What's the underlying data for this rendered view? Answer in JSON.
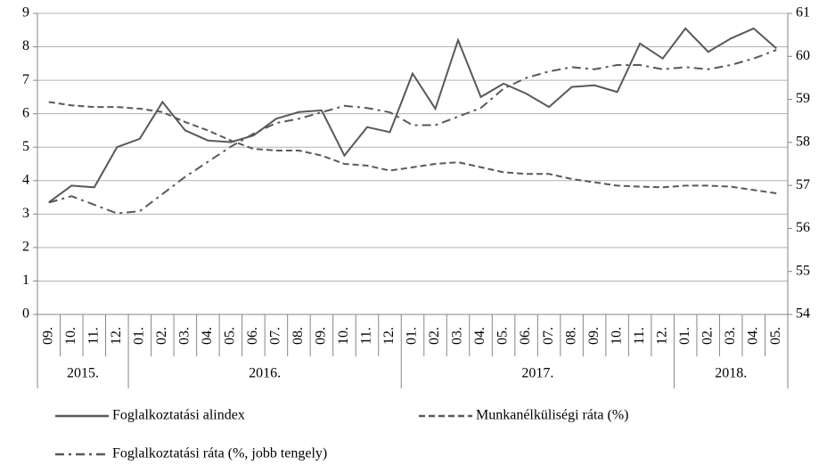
{
  "chart_data": {
    "type": "line",
    "categories": [
      "09.",
      "10.",
      "11.",
      "12.",
      "01.",
      "02.",
      "03.",
      "04.",
      "05.",
      "06.",
      "07.",
      "08.",
      "09.",
      "10.",
      "11.",
      "12.",
      "01.",
      "02.",
      "03.",
      "04.",
      "05.",
      "06.",
      "07.",
      "08.",
      "09.",
      "10.",
      "11.",
      "12.",
      "01.",
      "02.",
      "03.",
      "04.",
      "05."
    ],
    "year_groups": [
      {
        "label": "2015.",
        "months": 4
      },
      {
        "label": "2016.",
        "months": 12
      },
      {
        "label": "2017.",
        "months": 12
      },
      {
        "label": "2018.",
        "months": 5
      }
    ],
    "ylim": [
      0,
      9
    ],
    "yticks": [
      0,
      1,
      2,
      3,
      4,
      5,
      6,
      7,
      8,
      9
    ],
    "y2lim": [
      54,
      61
    ],
    "y2ticks": [
      54,
      55,
      56,
      57,
      58,
      59,
      60,
      61
    ],
    "grid": true,
    "series": [
      {
        "name": "Foglalkoztatási alindex",
        "color": "#595959",
        "dash": "solid",
        "values": [
          3.35,
          3.85,
          3.8,
          5.0,
          5.25,
          6.35,
          5.5,
          5.2,
          5.15,
          5.35,
          5.85,
          6.05,
          6.1,
          4.75,
          5.6,
          5.45,
          7.2,
          6.15,
          8.2,
          6.5,
          6.9,
          6.6,
          6.2,
          6.8,
          6.85,
          6.65,
          8.1,
          7.65,
          8.55,
          7.85,
          8.25,
          8.55,
          7.95
        ]
      },
      {
        "name": "Munkanélküliségi ráta (%)",
        "color": "#595959",
        "dash": "dashed",
        "values": [
          6.35,
          6.25,
          6.2,
          6.2,
          6.15,
          6.05,
          5.75,
          5.5,
          5.2,
          4.95,
          4.9,
          4.9,
          4.75,
          4.5,
          4.45,
          4.3,
          4.4,
          4.5,
          4.55,
          4.4,
          4.25,
          4.2,
          4.2,
          4.05,
          3.95,
          3.85,
          3.82,
          3.8,
          3.85,
          3.85,
          3.82,
          3.72,
          3.62
        ]
      },
      {
        "name": "Foglalkoztatási ráta (%, jobb tengely)",
        "color": "#595959",
        "dash": "dashdot",
        "axis": "y2",
        "values": [
          56.6,
          56.75,
          56.55,
          56.35,
          56.4,
          56.8,
          57.2,
          57.55,
          57.9,
          58.2,
          58.45,
          58.55,
          58.7,
          58.85,
          58.8,
          58.7,
          58.4,
          58.4,
          58.6,
          58.8,
          59.25,
          59.5,
          59.65,
          59.75,
          59.7,
          59.8,
          59.8,
          59.7,
          59.75,
          59.7,
          59.8,
          59.95,
          60.15
        ]
      }
    ]
  }
}
